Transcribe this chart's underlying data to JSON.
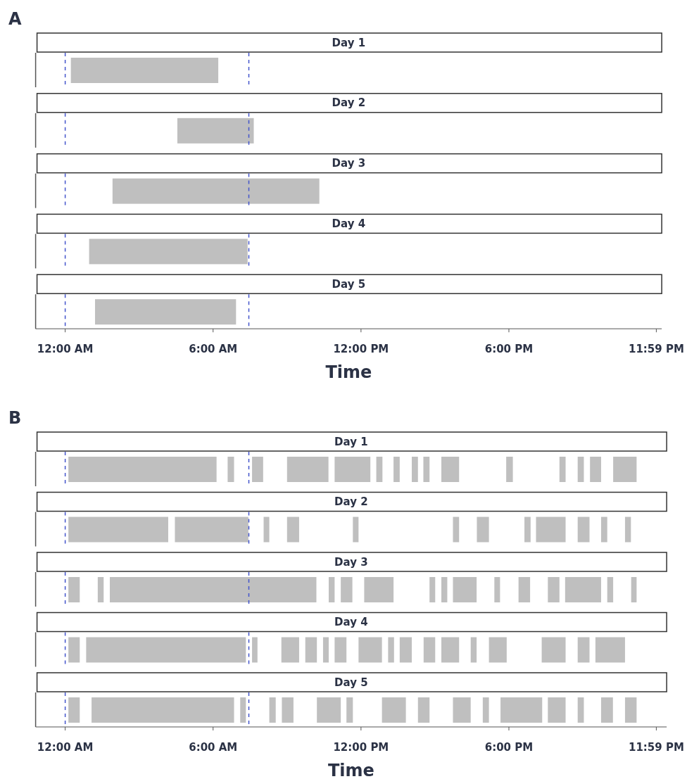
{
  "chart_data": [
    {
      "type": "bar",
      "orientation": "horizontal",
      "annotations": [
        "A"
      ],
      "xlabel": "Time",
      "categories": [
        "Day 1",
        "Day 2",
        "Day 3",
        "Day 4",
        "Day 5"
      ],
      "xlim": [
        -1.2,
        24.2
      ],
      "xticks": [
        {
          "value": 0,
          "label": "12:00 AM"
        },
        {
          "value": 6,
          "label": "6:00 AM"
        },
        {
          "value": 12,
          "label": "12:00 PM"
        },
        {
          "value": 18,
          "label": "6:00 PM"
        },
        {
          "value": 23.98,
          "label": "11:59 PM"
        }
      ],
      "ref_lines": [
        {
          "axis": "x",
          "value": 0,
          "color": "#4455cc",
          "line_style": "dashed"
        },
        {
          "axis": "x",
          "value": 7.45,
          "color": "#4455cc",
          "line_style": "dashed"
        }
      ],
      "series": [
        {
          "color": "#bfbfbf",
          "base": [
            0.23,
            4.55,
            1.92,
            0.97,
            1.21
          ],
          "values": [
            5.98,
            3.1,
            8.39,
            6.43,
            5.72
          ]
        }
      ]
    },
    {
      "type": "bar",
      "orientation": "horizontal",
      "annotations": [
        "B"
      ],
      "xlabel": "Time",
      "categories": [
        "Day 1",
        "Day 2",
        "Day 3",
        "Day 4",
        "Day 5"
      ],
      "xlim": [
        -1.2,
        24.4
      ],
      "xticks": [
        {
          "value": 0,
          "label": "12:00 AM"
        },
        {
          "value": 6,
          "label": "6:00 AM"
        },
        {
          "value": 12,
          "label": "12:00 PM"
        },
        {
          "value": 18,
          "label": "6:00 PM"
        },
        {
          "value": 23.98,
          "label": "11:59 PM"
        }
      ],
      "ref_lines": [
        {
          "axis": "x",
          "value": 0,
          "color": "#4455cc",
          "line_style": "dashed"
        },
        {
          "axis": "x",
          "value": 7.45,
          "color": "#4455cc",
          "line_style": "dashed"
        }
      ],
      "series": [
        {
          "color": "#bfbfbf",
          "base": [
            0.13,
            0.13,
            0.13,
            0.13,
            0.13
          ],
          "values": [
            6.01,
            4.05,
            0.46,
            0.46,
            0.46
          ]
        },
        {
          "color": "#bfbfbf",
          "base": [
            6.59,
            4.45,
            1.32,
            0.85,
            1.07
          ],
          "values": [
            0.26,
            2.98,
            0.24,
            6.48,
            5.78
          ]
        },
        {
          "color": "#bfbfbf",
          "base": [
            7.58,
            8.05,
            1.81,
            7.58,
            7.1
          ],
          "values": [
            0.45,
            0.23,
            8.38,
            0.22,
            0.23
          ]
        },
        {
          "color": "#bfbfbf",
          "base": [
            9.0,
            9.0,
            10.69,
            8.77,
            8.28
          ],
          "values": [
            1.68,
            0.49,
            0.24,
            0.72,
            0.26
          ]
        },
        {
          "color": "#bfbfbf",
          "base": [
            10.93,
            11.67,
            11.18,
            9.74,
            8.79
          ],
          "values": [
            1.45,
            0.23,
            0.47,
            0.47,
            0.47
          ]
        },
        {
          "color": "#bfbfbf",
          "base": [
            12.62,
            15.73,
            12.13,
            10.46,
            10.21
          ],
          "values": [
            0.25,
            0.25,
            1.19,
            0.23,
            0.97
          ]
        },
        {
          "color": "#bfbfbf",
          "base": [
            13.32,
            16.7,
            14.78,
            10.93,
            11.41
          ],
          "values": [
            0.25,
            0.49,
            0.23,
            0.48,
            0.26
          ]
        },
        {
          "color": "#bfbfbf",
          "base": [
            14.06,
            18.63,
            15.26,
            11.9,
            12.85
          ],
          "values": [
            0.25,
            0.25,
            0.24,
            0.95,
            0.97
          ]
        },
        {
          "color": "#bfbfbf",
          "base": [
            14.53,
            19.1,
            15.73,
            13.1,
            14.31
          ],
          "values": [
            0.25,
            1.2,
            0.96,
            0.24,
            0.47
          ]
        },
        {
          "color": "#bfbfbf",
          "base": [
            15.26,
            20.79,
            17.41,
            13.57,
            15.73
          ],
          "values": [
            0.72,
            0.48,
            0.23,
            0.49,
            0.72
          ]
        },
        {
          "color": "#bfbfbf",
          "base": [
            17.89,
            21.74,
            18.39,
            14.54,
            16.94
          ],
          "values": [
            0.27,
            0.25,
            0.47,
            0.47,
            0.25
          ]
        },
        {
          "color": "#bfbfbf",
          "base": [
            20.05,
            22.71,
            19.58,
            15.26,
            17.66
          ],
          "values": [
            0.25,
            0.24,
            0.47,
            0.72,
            1.69
          ]
        },
        {
          "color": "#bfbfbf",
          "base": [
            20.79,
            null,
            20.28,
            16.45,
            19.58
          ],
          "values": [
            0.25,
            null,
            1.46,
            0.24,
            0.72
          ]
        },
        {
          "color": "#bfbfbf",
          "base": [
            21.29,
            null,
            21.99,
            17.19,
            20.79
          ],
          "values": [
            0.45,
            null,
            0.24,
            0.72,
            0.25
          ]
        },
        {
          "color": "#bfbfbf",
          "base": [
            22.23,
            null,
            22.96,
            19.33,
            21.74
          ],
          "values": [
            0.95,
            null,
            0.22,
            0.97,
            0.48
          ]
        },
        {
          "color": "#bfbfbf",
          "base": [
            null,
            null,
            null,
            20.79,
            22.71
          ],
          "values": [
            null,
            null,
            null,
            0.48,
            0.47
          ]
        },
        {
          "color": "#bfbfbf",
          "base": [
            null,
            null,
            null,
            21.51,
            null
          ],
          "values": [
            null,
            null,
            null,
            1.2,
            null
          ]
        }
      ]
    }
  ]
}
